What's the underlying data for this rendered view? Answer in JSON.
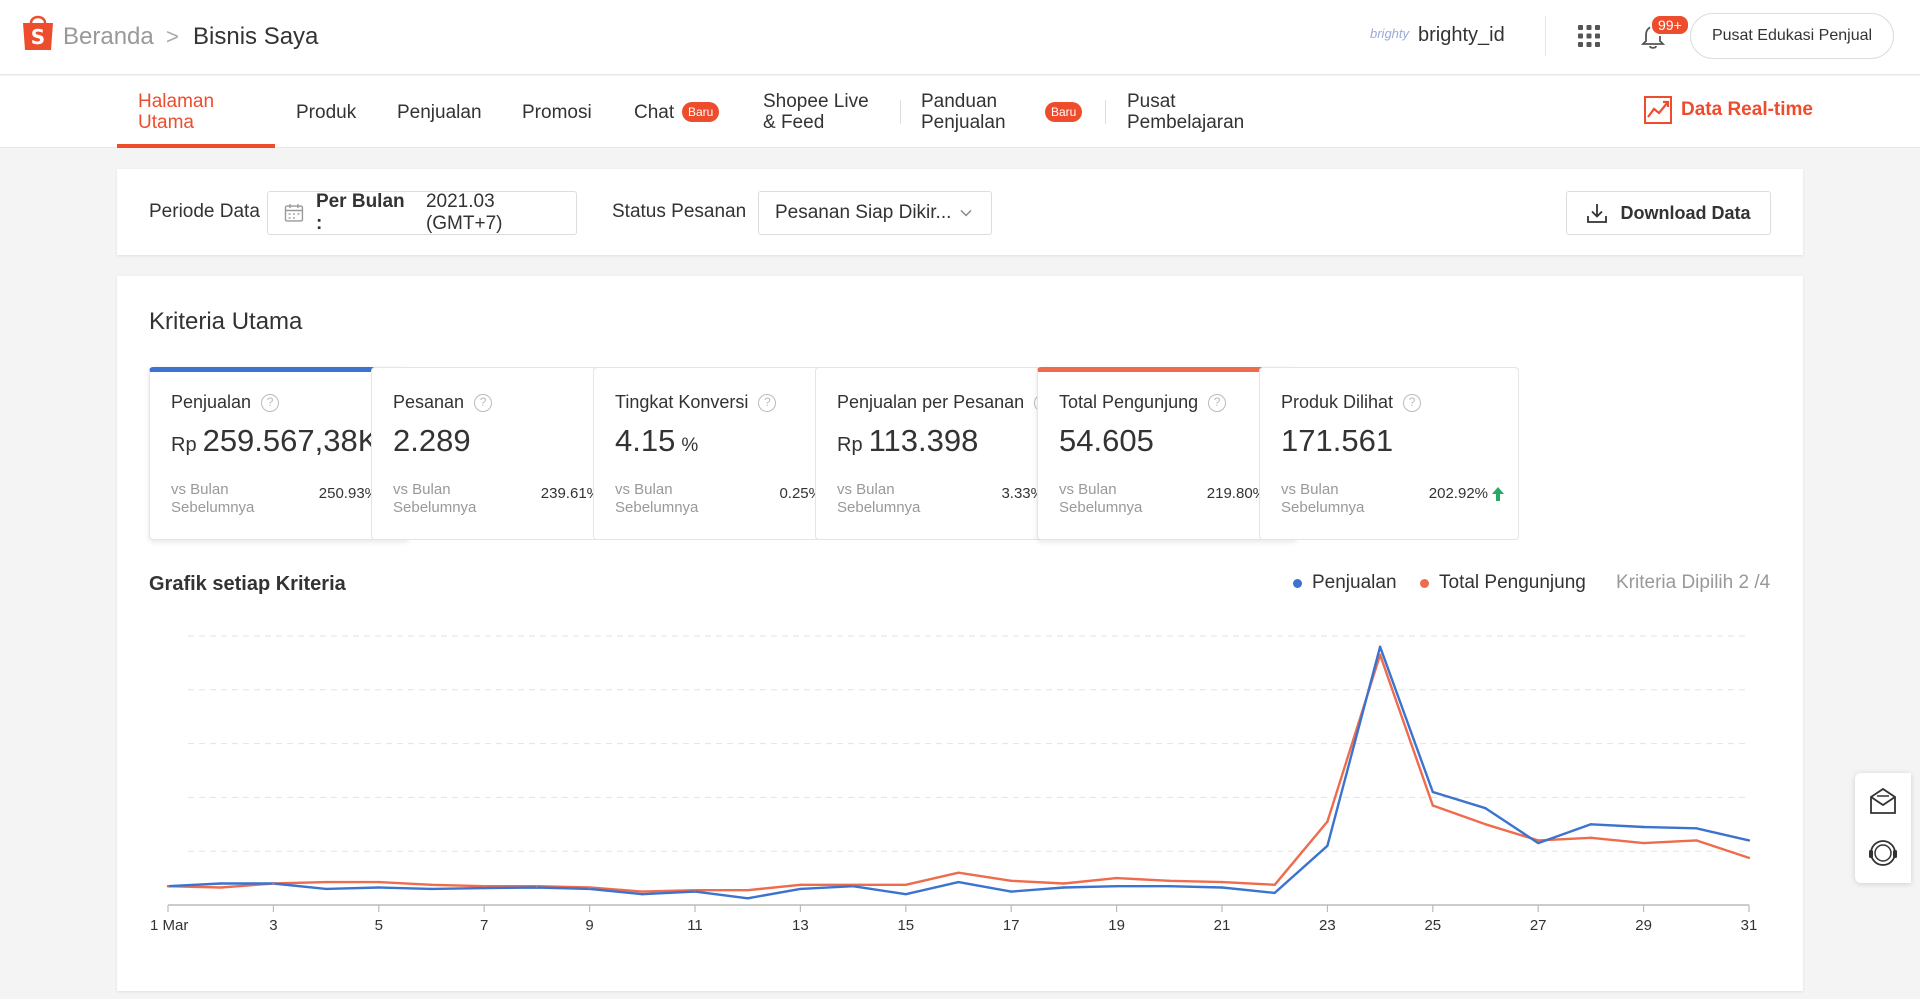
{
  "header": {
    "breadcrumb_home": "Beranda",
    "breadcrumb_current": "Bisnis Saya",
    "shop_logo_text": "brighty",
    "username": "brighty_id",
    "notification_count": "99+",
    "edu_button": "Pusat Edukasi Penjual"
  },
  "nav": {
    "tab_home_1": "Halaman",
    "tab_home_2": "Utama",
    "tab_produk": "Produk",
    "tab_penjualan": "Penjualan",
    "tab_promosi": "Promosi",
    "tab_chat": "Chat",
    "badge_new": "Baru",
    "tab_live_1": "Shopee Live",
    "tab_live_2": "& Feed",
    "tab_panduan_1": "Panduan",
    "tab_panduan_2": "Penjualan",
    "tab_pusat_1": "Pusat",
    "tab_pusat_2": "Pembelajaran",
    "realtime": "Data Real-time"
  },
  "filters": {
    "period_label": "Periode Data",
    "period_type": "Per Bulan :",
    "period_value": "2021.03 (GMT+7)",
    "status_label": "Status Pesanan",
    "status_value": "Pesanan Siap Dikir...",
    "download": "Download Data"
  },
  "kriteria": {
    "title": "Kriteria Utama",
    "vs_label_1": "vs Bulan",
    "vs_label_2": "Sebelumnya",
    "metrics": [
      {
        "label": "Penjualan",
        "prefix": "Rp",
        "value": "259.567,38K",
        "suffix": "",
        "change": "250.93%"
      },
      {
        "label": "Pesanan",
        "prefix": "",
        "value": "2.289",
        "suffix": "",
        "change": "239.61%"
      },
      {
        "label": "Tingkat Konversi",
        "prefix": "",
        "value": "4.15",
        "suffix": "%",
        "change": "0.25%"
      },
      {
        "label": "Penjualan per Pesanan",
        "prefix": "Rp",
        "value": "113.398",
        "suffix": "",
        "change": "3.33%"
      },
      {
        "label": "Total Pengunjung",
        "prefix": "",
        "value": "54.605",
        "suffix": "",
        "change": "219.80%"
      },
      {
        "label": "Produk Dilihat",
        "prefix": "",
        "value": "171.561",
        "suffix": "",
        "change": "202.92%"
      }
    ]
  },
  "chart_section": {
    "title": "Grafik setiap Kriteria",
    "criteria_count": "Kriteria Dipilih 2 /4"
  },
  "colors": {
    "accent": "#ee4d2d",
    "series_blue": "#3b73cf",
    "series_orange": "#ee6c4d",
    "up_green": "#26aa63"
  },
  "chart_data": {
    "type": "line",
    "x": [
      1,
      2,
      3,
      4,
      5,
      6,
      7,
      8,
      9,
      10,
      11,
      12,
      13,
      14,
      15,
      16,
      17,
      18,
      19,
      20,
      21,
      22,
      23,
      24,
      25,
      26,
      27,
      28,
      29,
      30,
      31
    ],
    "xticks": [
      1,
      3,
      5,
      7,
      9,
      11,
      13,
      15,
      17,
      19,
      21,
      23,
      25,
      27,
      29,
      31
    ],
    "xtick_labels": [
      "1 Mar",
      "3",
      "5",
      "7",
      "9",
      "11",
      "13",
      "15",
      "17",
      "19",
      "21",
      "23",
      "25",
      "27",
      "29",
      "31"
    ],
    "grid": true,
    "ylim": [
      0,
      100
    ],
    "legend_position": "top-right",
    "series": [
      {
        "name": "Penjualan",
        "color": "#3b73cf",
        "values": [
          7,
          8,
          8,
          6,
          6.5,
          6,
          6.3,
          6.5,
          6,
          4,
          5,
          2.5,
          6,
          7,
          4,
          8.5,
          5,
          6.5,
          7,
          7,
          6.5,
          4.5,
          22,
          96,
          42,
          36,
          23,
          30,
          29,
          28.5,
          24
        ]
      },
      {
        "name": "Total Pengunjung",
        "color": "#ee6c4d",
        "values": [
          7,
          6.5,
          8,
          8.5,
          8.5,
          7.5,
          7,
          7,
          6.5,
          5,
          5.5,
          5.5,
          7.5,
          7.5,
          7.5,
          12,
          9,
          8,
          10,
          9,
          8.5,
          7.5,
          31,
          93,
          37,
          30,
          24,
          25,
          23,
          24,
          17.5
        ]
      }
    ]
  }
}
